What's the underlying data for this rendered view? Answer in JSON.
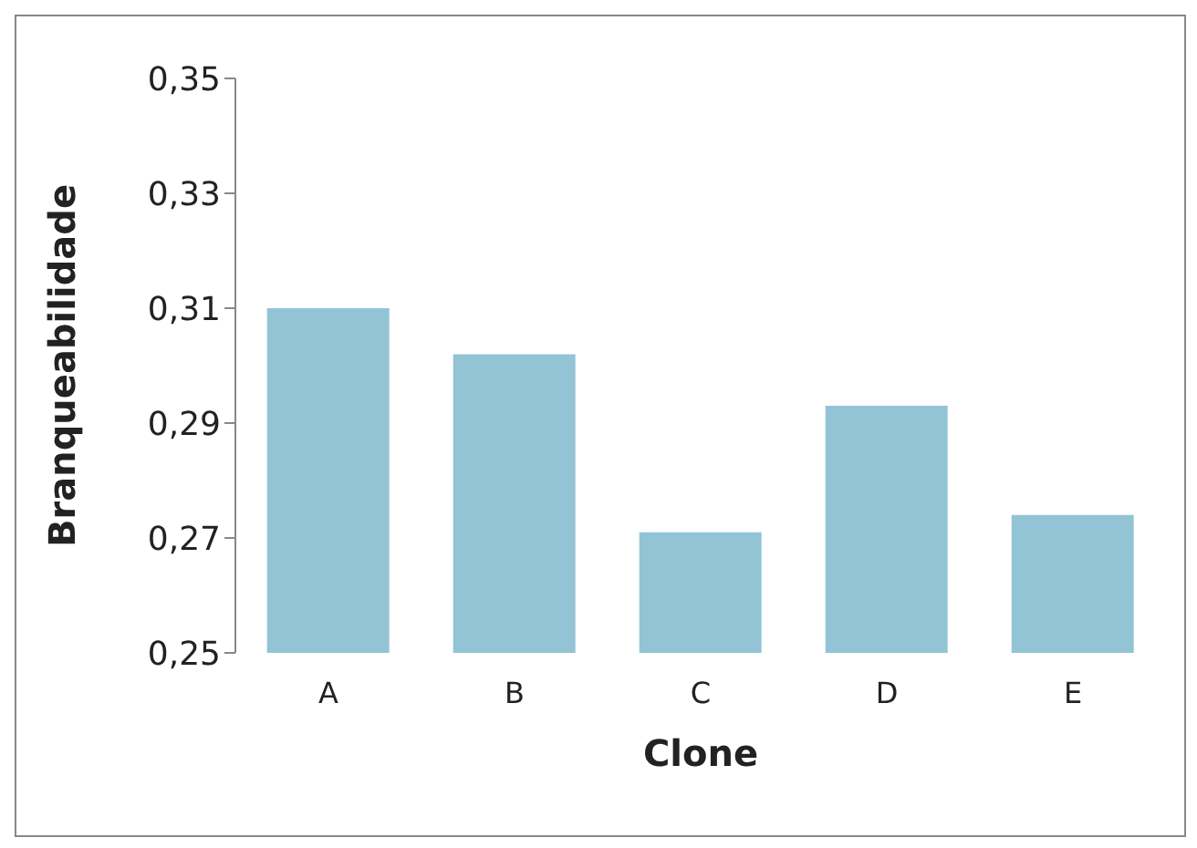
{
  "chart_data": {
    "type": "bar",
    "xlabel": "Clone",
    "ylabel": "Branqueabilidade",
    "categories": [
      "A",
      "B",
      "C",
      "D",
      "E"
    ],
    "values": [
      0.31,
      0.302,
      0.271,
      0.293,
      0.274
    ],
    "color": "#93c4d5",
    "ylim": [
      0.25,
      0.35
    ],
    "yticks": [
      {
        "value": 0.25,
        "label": "0,25"
      },
      {
        "value": 0.27,
        "label": "0,27"
      },
      {
        "value": 0.29,
        "label": "0,29"
      },
      {
        "value": 0.31,
        "label": "0,31"
      },
      {
        "value": 0.33,
        "label": "0,33"
      },
      {
        "value": 0.35,
        "label": "0,35"
      }
    ],
    "grid": false,
    "legend": false
  }
}
